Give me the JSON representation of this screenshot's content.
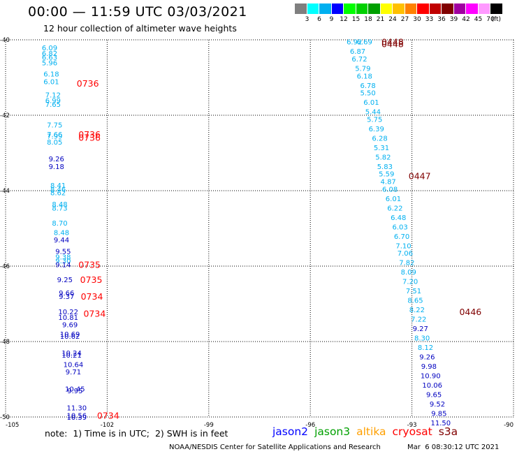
{
  "header": {
    "title": "00:00 — 11:59 UTC 03/03/2021",
    "subtitle": "12 hour collection of altimeter wave heights"
  },
  "legend": {
    "unit": "(ft)",
    "bins": [
      {
        "label": "3",
        "color": "#7f7f7f"
      },
      {
        "label": "6",
        "color": "#00ffff"
      },
      {
        "label": "9",
        "color": "#00b0f0"
      },
      {
        "label": "12",
        "color": "#0000ff"
      },
      {
        "label": "15",
        "color": "#00ff00"
      },
      {
        "label": "18",
        "color": "#00d000"
      },
      {
        "label": "21",
        "color": "#00a000"
      },
      {
        "label": "24",
        "color": "#ffff00"
      },
      {
        "label": "27",
        "color": "#ffc000"
      },
      {
        "label": "30",
        "color": "#ff8000"
      },
      {
        "label": "33",
        "color": "#ff0000"
      },
      {
        "label": "36",
        "color": "#c00000"
      },
      {
        "label": "39",
        "color": "#800000"
      },
      {
        "label": "42",
        "color": "#a000a0"
      },
      {
        "label": "45",
        "color": "#ff00ff"
      },
      {
        "label": "70",
        "color": "#ff99ff"
      },
      {
        "label": "",
        "color": "#000000"
      }
    ]
  },
  "map": {
    "lon_range": [
      -105,
      -90
    ],
    "lat_range": [
      -50,
      -40
    ],
    "lon_ticks": [
      "-105",
      "-102",
      "-99",
      "-96",
      "-93",
      "-90"
    ],
    "lat_ticks": [
      "-40",
      "-42",
      "-44",
      "-46",
      "-48",
      "-50"
    ]
  },
  "colors": {
    "light": "#00b0f0",
    "dark": "#0000c0",
    "time_red": "#ff0000",
    "time_dark": "#800000"
  },
  "track_west": [
    {
      "v": "6.09",
      "lon": -103.7,
      "lat": -40.2,
      "c": "light"
    },
    {
      "v": "6.82",
      "lon": -103.7,
      "lat": -40.35,
      "c": "light"
    },
    {
      "v": "6.63",
      "lon": -103.7,
      "lat": -40.45,
      "c": "light"
    },
    {
      "v": "5.96",
      "lon": -103.7,
      "lat": -40.6,
      "c": "light"
    },
    {
      "v": "6.18",
      "lon": -103.65,
      "lat": -40.9,
      "c": "light"
    },
    {
      "v": "6.01",
      "lon": -103.65,
      "lat": -41.1,
      "c": "light"
    },
    {
      "v": "7.12",
      "lon": -103.6,
      "lat": -41.45,
      "c": "light"
    },
    {
      "v": "6.99",
      "lon": -103.6,
      "lat": -41.6,
      "c": "light"
    },
    {
      "v": "7.65",
      "lon": -103.6,
      "lat": -41.7,
      "c": "light"
    },
    {
      "v": "7.75",
      "lon": -103.55,
      "lat": -42.25,
      "c": "light"
    },
    {
      "v": "7.66",
      "lon": -103.55,
      "lat": -42.5,
      "c": "light"
    },
    {
      "v": "7.99",
      "lon": -103.55,
      "lat": -42.55,
      "c": "light"
    },
    {
      "v": "8.05",
      "lon": -103.55,
      "lat": -42.7,
      "c": "light"
    },
    {
      "v": "9.26",
      "lon": -103.5,
      "lat": -43.15,
      "c": "dark"
    },
    {
      "v": "9.18",
      "lon": -103.5,
      "lat": -43.35,
      "c": "dark"
    },
    {
      "v": "8.41",
      "lon": -103.45,
      "lat": -43.85,
      "c": "light"
    },
    {
      "v": "8.46",
      "lon": -103.45,
      "lat": -43.95,
      "c": "light"
    },
    {
      "v": "8.62",
      "lon": -103.45,
      "lat": -44.05,
      "c": "light"
    },
    {
      "v": "8.48",
      "lon": -103.4,
      "lat": -44.35,
      "c": "light"
    },
    {
      "v": "8.73",
      "lon": -103.4,
      "lat": -44.45,
      "c": "light"
    },
    {
      "v": "8.70",
      "lon": -103.4,
      "lat": -44.85,
      "c": "light"
    },
    {
      "v": "8.48",
      "lon": -103.35,
      "lat": -45.1,
      "c": "light"
    },
    {
      "v": "9.44",
      "lon": -103.35,
      "lat": -45.3,
      "c": "dark"
    },
    {
      "v": "9.55",
      "lon": -103.3,
      "lat": -45.6,
      "c": "dark"
    },
    {
      "v": "9.38",
      "lon": -103.3,
      "lat": -45.75,
      "c": "light"
    },
    {
      "v": "9.30",
      "lon": -103.3,
      "lat": -45.85,
      "c": "light"
    },
    {
      "v": "9.14",
      "lon": -103.3,
      "lat": -45.95,
      "c": "dark"
    },
    {
      "v": "9.25",
      "lon": -103.25,
      "lat": -46.35,
      "c": "dark"
    },
    {
      "v": "9.66",
      "lon": -103.2,
      "lat": -46.7,
      "c": "dark"
    },
    {
      "v": "9.37",
      "lon": -103.2,
      "lat": -46.8,
      "c": "dark"
    },
    {
      "v": "10.22",
      "lon": -103.15,
      "lat": -47.2,
      "c": "dark"
    },
    {
      "v": "10.81",
      "lon": -103.15,
      "lat": -47.35,
      "c": "dark"
    },
    {
      "v": "9.69",
      "lon": -103.1,
      "lat": -47.55,
      "c": "dark"
    },
    {
      "v": "10.69",
      "lon": -103.1,
      "lat": -47.8,
      "c": "dark"
    },
    {
      "v": "10.62",
      "lon": -103.1,
      "lat": -47.85,
      "c": "dark"
    },
    {
      "v": "10.24",
      "lon": -103.05,
      "lat": -48.3,
      "c": "dark"
    },
    {
      "v": "10.21",
      "lon": -103.05,
      "lat": -48.35,
      "c": "dark"
    },
    {
      "v": "10.64",
      "lon": -103.0,
      "lat": -48.6,
      "c": "dark"
    },
    {
      "v": "9.71",
      "lon": -103.0,
      "lat": -48.8,
      "c": "dark"
    },
    {
      "v": "10.45",
      "lon": -102.95,
      "lat": -49.25,
      "c": "dark"
    },
    {
      "v": "9.95",
      "lon": -102.95,
      "lat": -49.3,
      "c": "dark"
    },
    {
      "v": "11.30",
      "lon": -102.9,
      "lat": -49.75,
      "c": "dark"
    },
    {
      "v": "10.56",
      "lon": -102.9,
      "lat": -49.95,
      "c": "dark"
    },
    {
      "v": "10.39",
      "lon": -102.9,
      "lat": -50.0,
      "c": "dark"
    }
  ],
  "track_east": [
    {
      "v": "6.92",
      "lon": -94.7,
      "lat": -40.05,
      "c": "light"
    },
    {
      "v": "6.69",
      "lon": -94.4,
      "lat": -40.05,
      "c": "light"
    },
    {
      "v": "6.87",
      "lon": -94.6,
      "lat": -40.3,
      "c": "light"
    },
    {
      "v": "6.72",
      "lon": -94.55,
      "lat": -40.5,
      "c": "light"
    },
    {
      "v": "5.79",
      "lon": -94.45,
      "lat": -40.75,
      "c": "light"
    },
    {
      "v": "6.18",
      "lon": -94.4,
      "lat": -40.95,
      "c": "light"
    },
    {
      "v": "6.78",
      "lon": -94.3,
      "lat": -41.2,
      "c": "light"
    },
    {
      "v": "5.50",
      "lon": -94.3,
      "lat": -41.4,
      "c": "light"
    },
    {
      "v": "6.01",
      "lon": -94.2,
      "lat": -41.65,
      "c": "light"
    },
    {
      "v": "5.44",
      "lon": -94.15,
      "lat": -41.9,
      "c": "light"
    },
    {
      "v": "5.75",
      "lon": -94.1,
      "lat": -42.1,
      "c": "light"
    },
    {
      "v": "6.39",
      "lon": -94.05,
      "lat": -42.35,
      "c": "light"
    },
    {
      "v": "6.28",
      "lon": -93.95,
      "lat": -42.6,
      "c": "light"
    },
    {
      "v": "5.31",
      "lon": -93.9,
      "lat": -42.85,
      "c": "light"
    },
    {
      "v": "5.82",
      "lon": -93.85,
      "lat": -43.1,
      "c": "light"
    },
    {
      "v": "5.83",
      "lon": -93.8,
      "lat": -43.35,
      "c": "light"
    },
    {
      "v": "5.59",
      "lon": -93.75,
      "lat": -43.55,
      "c": "light"
    },
    {
      "v": "4.87",
      "lon": -93.7,
      "lat": -43.75,
      "c": "light"
    },
    {
      "v": "6.08",
      "lon": -93.65,
      "lat": -43.95,
      "c": "light"
    },
    {
      "v": "6.01",
      "lon": -93.55,
      "lat": -44.2,
      "c": "light"
    },
    {
      "v": "6.22",
      "lon": -93.5,
      "lat": -44.45,
      "c": "light"
    },
    {
      "v": "6.48",
      "lon": -93.4,
      "lat": -44.7,
      "c": "light"
    },
    {
      "v": "6.03",
      "lon": -93.35,
      "lat": -44.95,
      "c": "light"
    },
    {
      "v": "6.70",
      "lon": -93.3,
      "lat": -45.2,
      "c": "light"
    },
    {
      "v": "7.10",
      "lon": -93.25,
      "lat": -45.45,
      "c": "light"
    },
    {
      "v": "7.06",
      "lon": -93.2,
      "lat": -45.65,
      "c": "light"
    },
    {
      "v": "7.82",
      "lon": -93.15,
      "lat": -45.9,
      "c": "light"
    },
    {
      "v": "8.09",
      "lon": -93.1,
      "lat": -46.15,
      "c": "light"
    },
    {
      "v": "7.20",
      "lon": -93.05,
      "lat": -46.4,
      "c": "light"
    },
    {
      "v": "7.51",
      "lon": -92.95,
      "lat": -46.65,
      "c": "light"
    },
    {
      "v": "8.65",
      "lon": -92.9,
      "lat": -46.9,
      "c": "light"
    },
    {
      "v": "8.22",
      "lon": -92.85,
      "lat": -47.15,
      "c": "light"
    },
    {
      "v": "7.22",
      "lon": -92.8,
      "lat": -47.4,
      "c": "light"
    },
    {
      "v": "9.27",
      "lon": -92.75,
      "lat": -47.65,
      "c": "dark"
    },
    {
      "v": "8.30",
      "lon": -92.7,
      "lat": -47.9,
      "c": "light"
    },
    {
      "v": "8.12",
      "lon": -92.6,
      "lat": -48.15,
      "c": "light"
    },
    {
      "v": "9.26",
      "lon": -92.55,
      "lat": -48.4,
      "c": "dark"
    },
    {
      "v": "9.98",
      "lon": -92.5,
      "lat": -48.65,
      "c": "dark"
    },
    {
      "v": "10.90",
      "lon": -92.45,
      "lat": -48.9,
      "c": "dark"
    },
    {
      "v": "10.06",
      "lon": -92.4,
      "lat": -49.15,
      "c": "dark"
    },
    {
      "v": "9.65",
      "lon": -92.35,
      "lat": -49.4,
      "c": "dark"
    },
    {
      "v": "9.52",
      "lon": -92.25,
      "lat": -49.65,
      "c": "dark"
    },
    {
      "v": "9.85",
      "lon": -92.2,
      "lat": -49.9,
      "c": "dark"
    },
    {
      "v": "11.50",
      "lon": -92.15,
      "lat": -50.15,
      "c": "dark"
    }
  ],
  "time_labels": [
    {
      "t": "0736",
      "lon": -102.9,
      "lat": -41.15,
      "c": "time_red"
    },
    {
      "t": "0736",
      "lon": -102.85,
      "lat": -42.5,
      "c": "time_red"
    },
    {
      "t": "0736",
      "lon": -102.85,
      "lat": -42.58,
      "c": "time_red"
    },
    {
      "t": "0735",
      "lon": -102.85,
      "lat": -45.95,
      "c": "time_red"
    },
    {
      "t": "0735",
      "lon": -102.8,
      "lat": -46.35,
      "c": "time_red"
    },
    {
      "t": "0734",
      "lon": -102.78,
      "lat": -46.8,
      "c": "time_red"
    },
    {
      "t": "0734",
      "lon": -102.7,
      "lat": -47.25,
      "c": "time_red"
    },
    {
      "t": "0734",
      "lon": -102.3,
      "lat": -49.95,
      "c": "time_red"
    },
    {
      "t": "0448",
      "lon": -93.9,
      "lat": -40.05,
      "c": "time_dark"
    },
    {
      "t": "0448",
      "lon": -93.9,
      "lat": -40.1,
      "c": "time_dark"
    },
    {
      "t": "0447",
      "lon": -93.1,
      "lat": -43.6,
      "c": "time_dark"
    },
    {
      "t": "0446",
      "lon": -91.6,
      "lat": -47.2,
      "c": "time_dark"
    }
  ],
  "note": "note:  1) Time is in UTC;  2) SWH is in feet",
  "satellites": [
    {
      "name": "jason2",
      "color": "#0000ff"
    },
    {
      "name": "jason3",
      "color": "#00a000"
    },
    {
      "name": "altika",
      "color": "#ffa000"
    },
    {
      "name": "cryosat",
      "color": "#ff0000"
    },
    {
      "name": "s3a",
      "color": "#800000"
    }
  ],
  "footer": {
    "credit": "NOAA/NESDIS Center for Satellite Applications and Research",
    "timestamp": "Mar  6 08:30:12 UTC 2021"
  }
}
